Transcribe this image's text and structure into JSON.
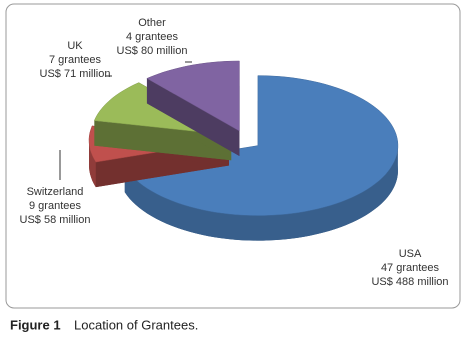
{
  "chart_data": {
    "type": "pie",
    "categories": [
      "USA",
      "Switzerland",
      "UK",
      "Other"
    ],
    "values": [
      488,
      58,
      71,
      80
    ],
    "value_labels": [
      "US$ 488 million",
      "US$ 58 million",
      "US$ 71 million",
      "US$ 80 million"
    ],
    "grantees": [
      47,
      9,
      7,
      4
    ],
    "grantees_labels": [
      "47 grantees",
      "9 grantees",
      "7 grantees",
      "4 grantees"
    ],
    "colors": [
      "#4a7ebb",
      "#c0504d",
      "#9bbb59",
      "#8064a2"
    ],
    "caption_label": "Figure 1",
    "caption": "Location of Grantees."
  }
}
